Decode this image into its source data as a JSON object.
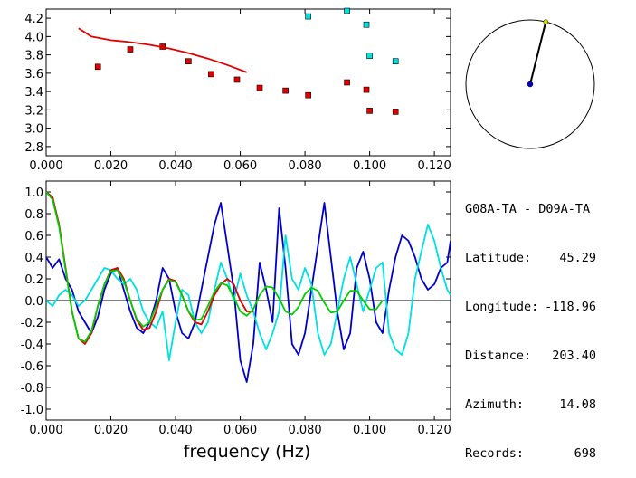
{
  "info": {
    "title": "G08A-TA - D09A-TA",
    "rows": [
      {
        "label": "Latitude:",
        "value": "45.29"
      },
      {
        "label": "Longitude:",
        "value": "-118.96"
      },
      {
        "label": "Distance:",
        "value": "203.40"
      },
      {
        "label": "Azimuth:",
        "value": "14.08"
      },
      {
        "label": "Records:",
        "value": "698"
      }
    ]
  },
  "compass": {
    "azimuth_deg": 14.08
  },
  "chart_data": [
    {
      "type": "scatter",
      "title": "",
      "xlabel": "",
      "ylabel": "",
      "xlim": [
        0,
        0.125
      ],
      "ylim": [
        2.7,
        4.3
      ],
      "x_ticks": [
        "0.000",
        "0.020",
        "0.040",
        "0.060",
        "0.080",
        "0.100",
        "0.120"
      ],
      "y_ticks": [
        "2.8",
        "3.0",
        "3.2",
        "3.4",
        "3.6",
        "3.8",
        "4.0",
        "4.2"
      ],
      "series": [
        {
          "color": "#e00000",
          "kind": "markers",
          "x": [
            0.016,
            0.026,
            0.036,
            0.044,
            0.051,
            0.059,
            0.066,
            0.074,
            0.081,
            0.093,
            0.099,
            0.1,
            0.108
          ],
          "y": [
            3.67,
            3.86,
            3.89,
            3.73,
            3.59,
            3.53,
            3.44,
            3.41,
            3.36,
            3.5,
            3.42,
            3.19,
            3.18
          ]
        },
        {
          "color": "#00e0e0",
          "kind": "markers",
          "x": [
            0.081,
            0.093,
            0.099,
            0.1,
            0.108
          ],
          "y": [
            4.22,
            4.28,
            4.13,
            3.79,
            3.73
          ]
        },
        {
          "color": "#e00000",
          "kind": "line",
          "x": [
            0.01,
            0.014,
            0.02,
            0.026,
            0.032,
            0.038,
            0.044,
            0.05,
            0.056,
            0.062
          ],
          "y": [
            4.09,
            4.0,
            3.96,
            3.94,
            3.91,
            3.87,
            3.82,
            3.76,
            3.69,
            3.61
          ]
        }
      ]
    },
    {
      "type": "line",
      "title": "",
      "xlabel": "frequency (Hz)",
      "ylabel": "",
      "xlim": [
        0,
        0.125
      ],
      "ylim": [
        -1.1,
        1.1
      ],
      "x_ticks": [
        "0.000",
        "0.020",
        "0.040",
        "0.060",
        "0.080",
        "0.100",
        "0.120"
      ],
      "y_ticks": [
        "-1.0",
        "-0.8",
        "-0.6",
        "-0.4",
        "-0.2",
        "0.0",
        "0.2",
        "0.4",
        "0.6",
        "0.8",
        "1.0"
      ],
      "series": [
        {
          "color": "#0000cc",
          "x": [
            0,
            0.002,
            0.004,
            0.006,
            0.008,
            0.01,
            0.012,
            0.014,
            0.016,
            0.018,
            0.02,
            0.022,
            0.024,
            0.026,
            0.028,
            0.03,
            0.032,
            0.034,
            0.036,
            0.038,
            0.04,
            0.042,
            0.044,
            0.046,
            0.048,
            0.05,
            0.052,
            0.054,
            0.056,
            0.058,
            0.06,
            0.062,
            0.064,
            0.066,
            0.068,
            0.07,
            0.072,
            0.074,
            0.076,
            0.078,
            0.08,
            0.082,
            0.084,
            0.086,
            0.088,
            0.09,
            0.092,
            0.094,
            0.096,
            0.098,
            0.1,
            0.102,
            0.104,
            0.106,
            0.108,
            0.11,
            0.112,
            0.114,
            0.116,
            0.118,
            0.12,
            0.122,
            0.124,
            0.125
          ],
          "y": [
            0.4,
            0.3,
            0.38,
            0.2,
            0.1,
            -0.1,
            -0.2,
            -0.3,
            -0.15,
            0.1,
            0.25,
            0.3,
            0.1,
            -0.1,
            -0.25,
            -0.3,
            -0.2,
            0.0,
            0.3,
            0.2,
            -0.1,
            -0.3,
            -0.35,
            -0.2,
            0.1,
            0.4,
            0.7,
            0.9,
            0.5,
            0.1,
            -0.55,
            -0.75,
            -0.4,
            0.35,
            0.1,
            -0.2,
            0.85,
            0.3,
            -0.4,
            -0.5,
            -0.3,
            0.1,
            0.5,
            0.9,
            0.4,
            -0.1,
            -0.45,
            -0.3,
            0.3,
            0.45,
            0.2,
            -0.2,
            -0.3,
            0.1,
            0.4,
            0.6,
            0.55,
            0.4,
            0.2,
            0.1,
            0.15,
            0.3,
            0.35,
            0.55
          ]
        },
        {
          "color": "#00e0e0",
          "x": [
            0,
            0.002,
            0.004,
            0.006,
            0.008,
            0.01,
            0.012,
            0.014,
            0.016,
            0.018,
            0.02,
            0.022,
            0.024,
            0.026,
            0.028,
            0.03,
            0.032,
            0.034,
            0.036,
            0.038,
            0.04,
            0.042,
            0.044,
            0.046,
            0.048,
            0.05,
            0.052,
            0.054,
            0.056,
            0.058,
            0.06,
            0.062,
            0.064,
            0.066,
            0.068,
            0.07,
            0.072,
            0.074,
            0.076,
            0.078,
            0.08,
            0.082,
            0.084,
            0.086,
            0.088,
            0.09,
            0.092,
            0.094,
            0.096,
            0.098,
            0.1,
            0.102,
            0.104,
            0.106,
            0.108,
            0.11,
            0.112,
            0.114,
            0.116,
            0.118,
            0.12,
            0.122,
            0.124,
            0.125
          ],
          "y": [
            0,
            -0.05,
            0.05,
            0.1,
            0.05,
            -0.05,
            0.0,
            0.1,
            0.2,
            0.3,
            0.28,
            0.2,
            0.15,
            0.2,
            0.1,
            -0.1,
            -0.2,
            -0.25,
            -0.1,
            -0.55,
            -0.2,
            0.1,
            0.05,
            -0.2,
            -0.3,
            -0.2,
            0.1,
            0.35,
            0.2,
            0.0,
            0.25,
            0.05,
            -0.1,
            -0.3,
            -0.45,
            -0.3,
            -0.1,
            0.6,
            0.2,
            0.1,
            0.3,
            0.15,
            -0.3,
            -0.5,
            -0.4,
            -0.1,
            0.2,
            0.4,
            0.15,
            -0.1,
            0.1,
            0.3,
            0.35,
            -0.3,
            -0.45,
            -0.5,
            -0.3,
            0.2,
            0.45,
            0.7,
            0.55,
            0.3,
            0.1,
            0.05
          ]
        },
        {
          "color": "#e00000",
          "x": [
            0,
            0.002,
            0.004,
            0.006,
            0.008,
            0.01,
            0.012,
            0.014,
            0.016,
            0.018,
            0.02,
            0.022,
            0.024,
            0.026,
            0.028,
            0.03,
            0.032,
            0.034,
            0.036,
            0.038,
            0.04,
            0.042,
            0.044,
            0.046,
            0.048,
            0.05,
            0.052,
            0.054,
            0.056,
            0.058,
            0.06,
            0.062,
            0.064
          ],
          "y": [
            1.0,
            0.95,
            0.7,
            0.3,
            -0.1,
            -0.35,
            -0.4,
            -0.3,
            -0.05,
            0.15,
            0.28,
            0.3,
            0.2,
            0.0,
            -0.18,
            -0.27,
            -0.25,
            -0.1,
            0.1,
            0.2,
            0.18,
            0.05,
            -0.1,
            -0.2,
            -0.22,
            -0.1,
            0.05,
            0.15,
            0.2,
            0.15,
            0.0,
            -0.1,
            -0.1
          ]
        },
        {
          "color": "#00cc00",
          "x": [
            0,
            0.002,
            0.004,
            0.006,
            0.008,
            0.01,
            0.012,
            0.014,
            0.016,
            0.018,
            0.02,
            0.022,
            0.024,
            0.026,
            0.028,
            0.03,
            0.032,
            0.034,
            0.036,
            0.038,
            0.04,
            0.042,
            0.044,
            0.046,
            0.048,
            0.05,
            0.052,
            0.054,
            0.056,
            0.058,
            0.06,
            0.062,
            0.064,
            0.066,
            0.068,
            0.07,
            0.072,
            0.074,
            0.076,
            0.078,
            0.08,
            0.082,
            0.084,
            0.086,
            0.088,
            0.09,
            0.092,
            0.094,
            0.096,
            0.098,
            0.1,
            0.102,
            0.104
          ],
          "y": [
            1.0,
            0.93,
            0.68,
            0.28,
            -0.1,
            -0.35,
            -0.38,
            -0.28,
            -0.05,
            0.15,
            0.27,
            0.28,
            0.18,
            0.0,
            -0.17,
            -0.24,
            -0.2,
            -0.05,
            0.1,
            0.19,
            0.17,
            0.05,
            -0.1,
            -0.18,
            -0.17,
            -0.05,
            0.08,
            0.16,
            0.14,
            0.03,
            -0.1,
            -0.14,
            -0.08,
            0.05,
            0.13,
            0.12,
            0.02,
            -0.1,
            -0.13,
            -0.06,
            0.06,
            0.12,
            0.09,
            -0.02,
            -0.11,
            -0.1,
            0.0,
            0.09,
            0.09,
            0.0,
            -0.08,
            -0.08,
            0.0
          ]
        }
      ]
    }
  ]
}
